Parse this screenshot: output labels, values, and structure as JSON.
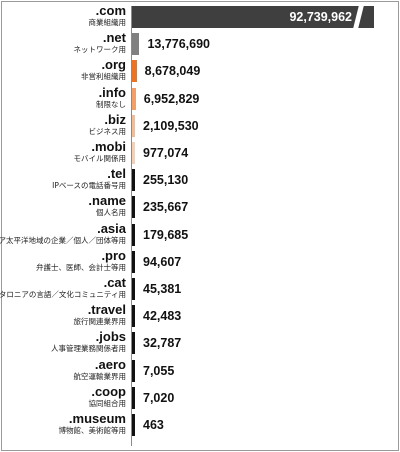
{
  "chart_data": {
    "type": "bar",
    "orientation": "horizontal",
    "axis_break_on_first_bar": true,
    "categories": [
      {
        "label": ".com",
        "sublabel": "商業組織用",
        "value": 92739962,
        "display": "92,739,962",
        "color": "#3f3f3f"
      },
      {
        "label": ".net",
        "sublabel": "ネットワーク用",
        "value": 13776690,
        "display": "13,776,690",
        "color": "#808080"
      },
      {
        "label": ".org",
        "sublabel": "非営利組織用",
        "value": 8678049,
        "display": "8,678,049",
        "color": "#ee7421"
      },
      {
        "label": ".info",
        "sublabel": "制限なし",
        "value": 6952829,
        "display": "6,952,829",
        "color": "#f2a068"
      },
      {
        "label": ".biz",
        "sublabel": "ビジネス用",
        "value": 2109530,
        "display": "2,109,530",
        "color": "#f5bc94"
      },
      {
        "label": ".mobi",
        "sublabel": "モバイル関係用",
        "value": 977074,
        "display": "977,074",
        "color": "#f7d0b4"
      },
      {
        "label": ".tel",
        "sublabel": "IPベースの電話番号用",
        "value": 255130,
        "display": "255,130",
        "color": "#111111"
      },
      {
        "label": ".name",
        "sublabel": "個人名用",
        "value": 235667,
        "display": "235,667",
        "color": "#111111"
      },
      {
        "label": ".asia",
        "sublabel": "アジア太平洋地域の企業／個人／団体等用",
        "value": 179685,
        "display": "179,685",
        "color": "#111111"
      },
      {
        "label": ".pro",
        "sublabel": "弁護士、医師、会計士等用",
        "value": 94607,
        "display": "94,607",
        "color": "#111111"
      },
      {
        "label": ".cat",
        "sublabel": "カタロニアの言語／文化コミュニティ用",
        "value": 45381,
        "display": "45,381",
        "color": "#111111"
      },
      {
        "label": ".travel",
        "sublabel": "旅行関連業界用",
        "value": 42483,
        "display": "42,483",
        "color": "#111111"
      },
      {
        "label": ".jobs",
        "sublabel": "人事管理業務関係者用",
        "value": 32787,
        "display": "32,787",
        "color": "#111111"
      },
      {
        "label": ".aero",
        "sublabel": "航空運輸業界用",
        "value": 7055,
        "display": "7,055",
        "color": "#111111"
      },
      {
        "label": ".coop",
        "sublabel": "協同組合用",
        "value": 7020,
        "display": "7,020",
        "color": "#111111"
      },
      {
        "label": ".museum",
        "sublabel": "博物館、美術館等用",
        "value": 463,
        "display": "463",
        "color": "#111111"
      }
    ]
  }
}
